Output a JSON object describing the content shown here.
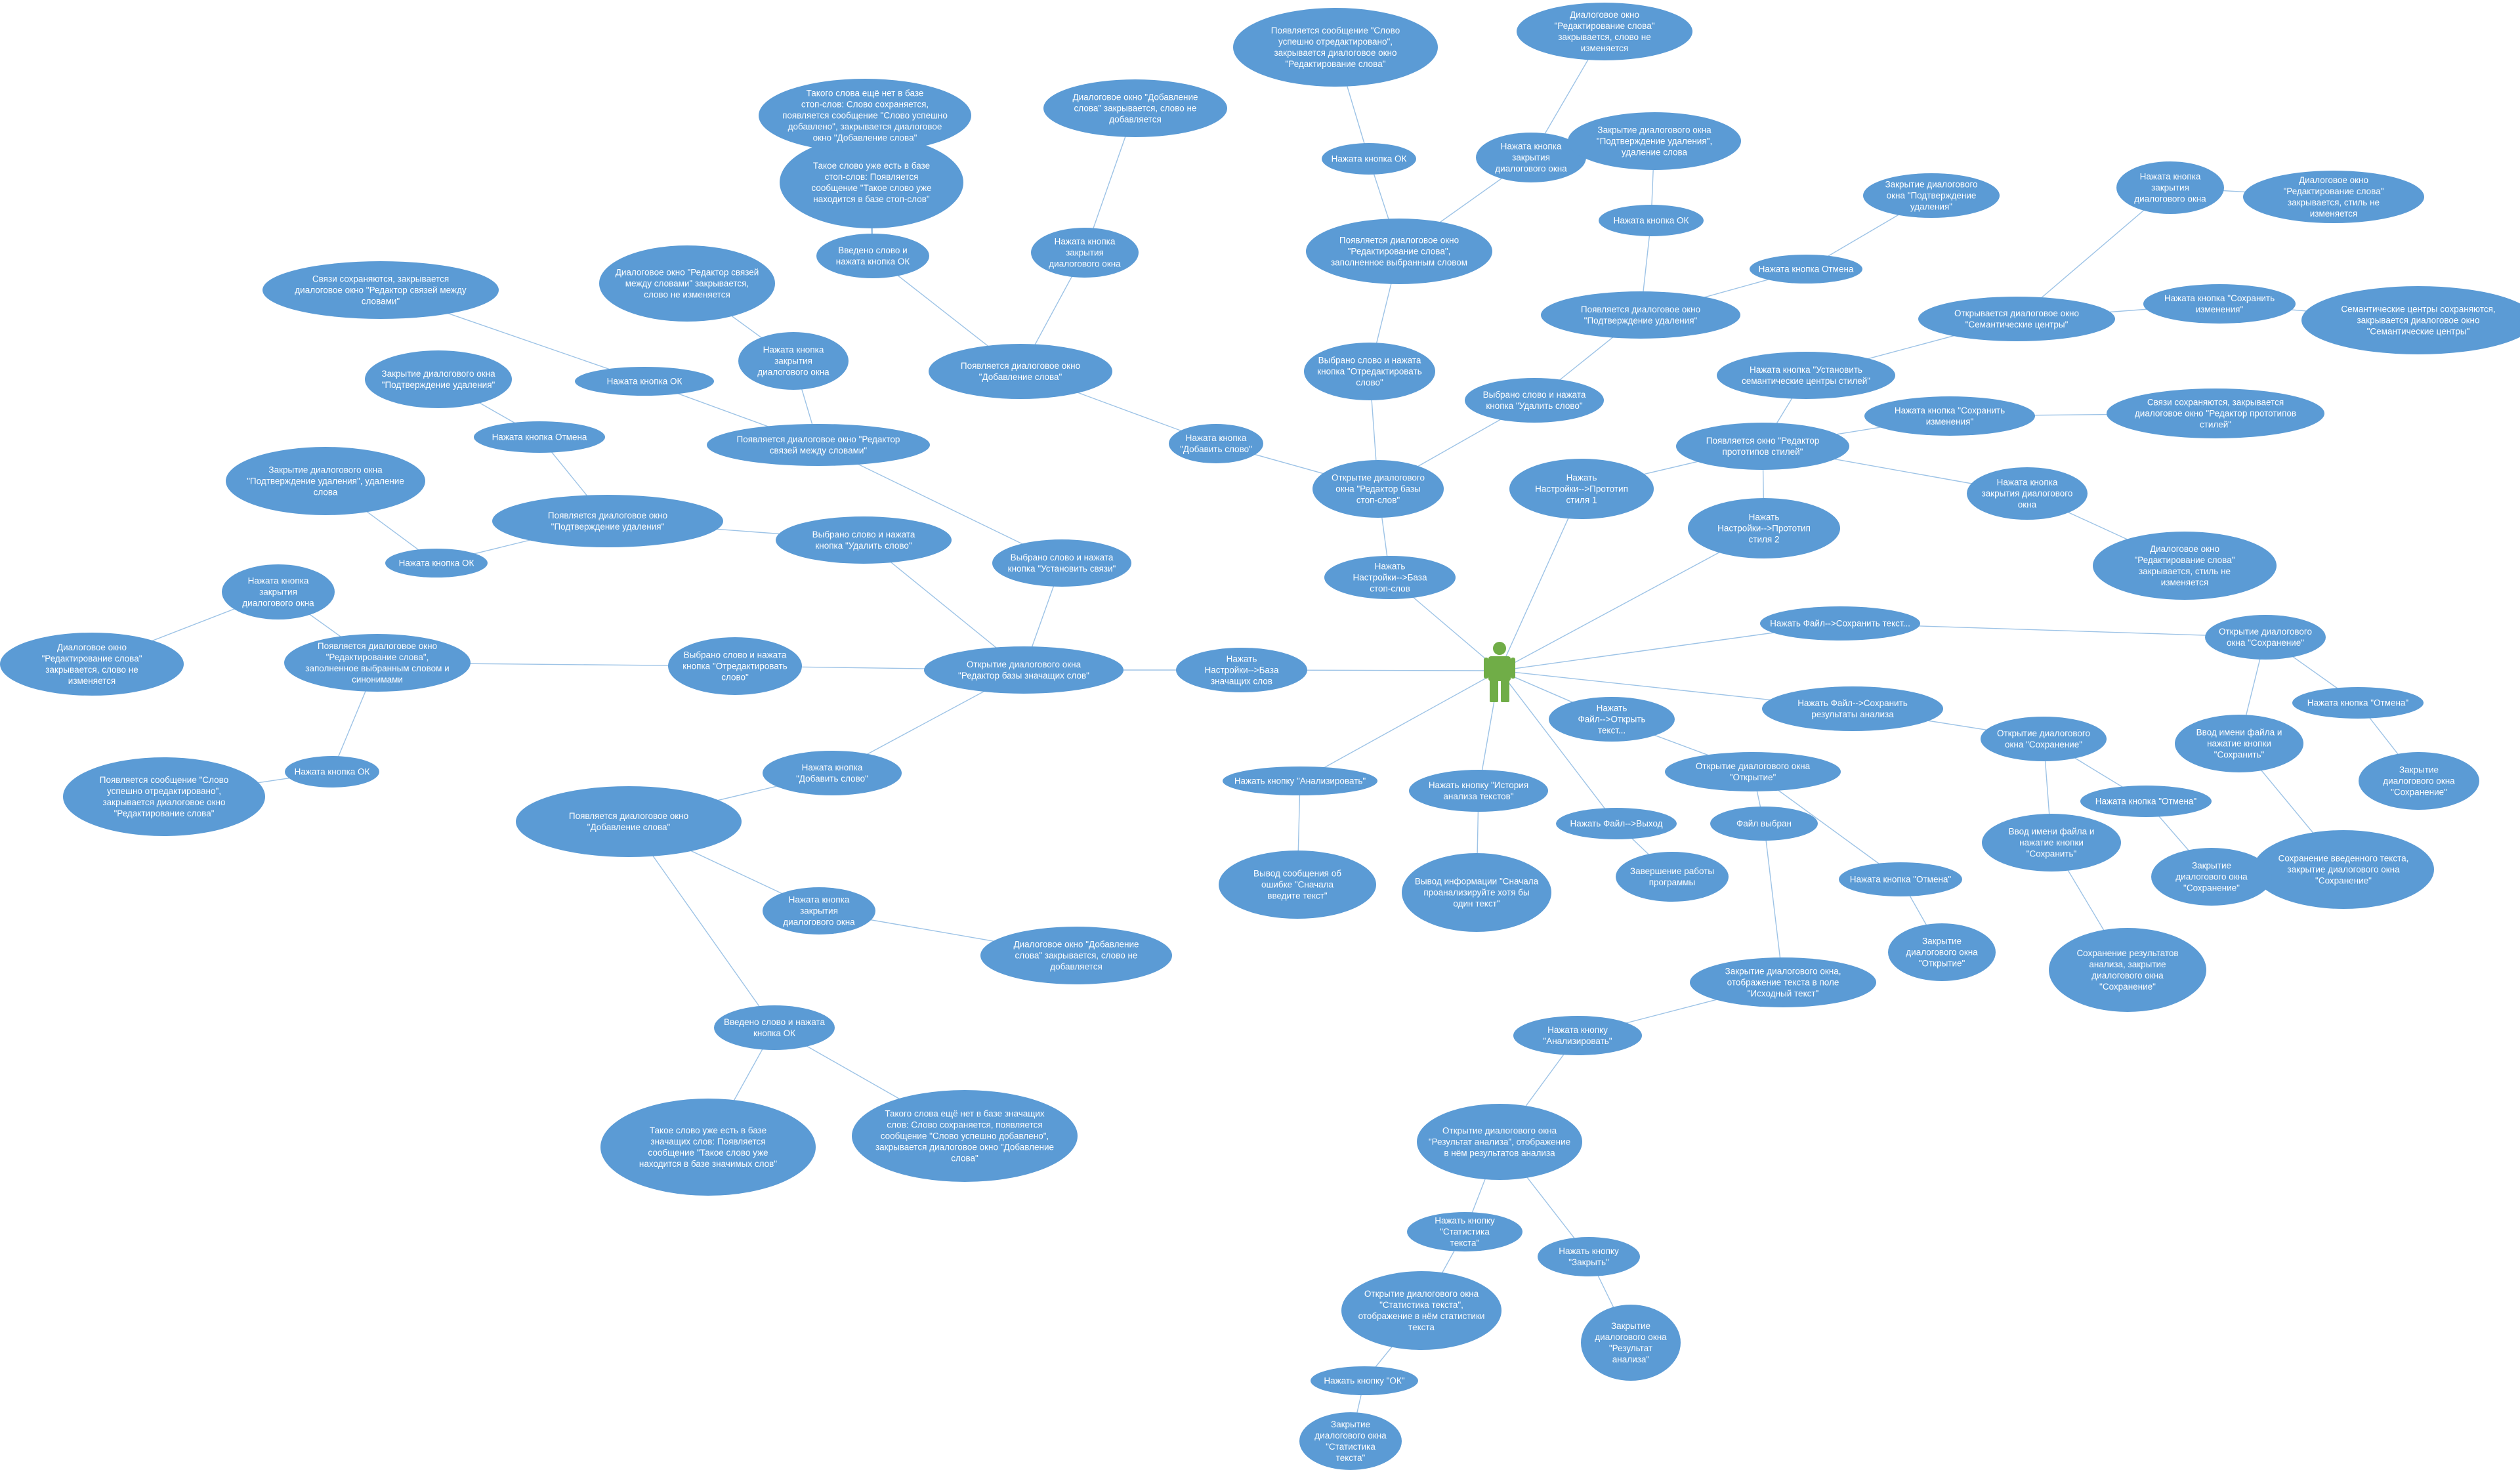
{
  "diagram": {
    "type": "use-case-mindmap",
    "colors": {
      "node": "#5b9bd5",
      "edge": "#9dc3e6",
      "text": "#ffffff",
      "actor": "#70ad47"
    },
    "actor": {
      "id": "actor",
      "icon": "user-actor-icon"
    },
    "nodes": [
      {
        "id": "set_stop",
        "text": "Нажать Настройки-->База стоп-слов"
      },
      {
        "id": "open_stop",
        "text": "Открытие диалогового окна \"Редактор базы стоп-слов\""
      },
      {
        "id": "stop_add",
        "text": "Нажата кнопка \"Добавить слово\""
      },
      {
        "id": "stop_dlg_add",
        "text": "Появляется диалоговое окно \"Добавление слова\""
      },
      {
        "id": "stop_close_add",
        "text": "Нажата кнопка закрытия диалогового окна"
      },
      {
        "id": "stop_add_closed",
        "text": "Диалоговое окно \"Добавление слова\" закрывается, слово не добавляется"
      },
      {
        "id": "stop_entered",
        "text": "Введено слово и нажата кнопка ОК"
      },
      {
        "id": "stop_exists",
        "text": "Такое слово уже есть в базе стоп-слов: Появляется сообщение \"Такое слово уже находится в базе стоп-слов\""
      },
      {
        "id": "stop_new",
        "text": "Такого слова ещё нет в базе стоп-слов: Слово сохраняется, появляется сообщение \"Слово успешно добавлено\", закрывается диалоговое окно \"Добавление слова\""
      },
      {
        "id": "stop_sel_edit",
        "text": "Выбрано слово и нажата кнопка \"Отредактировать слово\""
      },
      {
        "id": "stop_dlg_edit",
        "text": "Появляется диалоговое окно \"Редактирование слова\", заполненное выбранным словом"
      },
      {
        "id": "stop_edit_ok",
        "text": "Нажата кнопка ОК"
      },
      {
        "id": "stop_edit_msg",
        "text": "Появляется сообщение \"Слово успешно отредактировано\", закрывается диалоговое окно \"Редактирование слова\""
      },
      {
        "id": "stop_edit_close",
        "text": "Нажата кнопка закрытия диалогового окна"
      },
      {
        "id": "stop_edit_closed",
        "text": "Диалоговое окно \"Редактирование слова\" закрывается, слово не изменяется"
      },
      {
        "id": "stop_sel_del",
        "text": "Выбрано слово и нажата кнопка \"Удалить слово\""
      },
      {
        "id": "stop_dlg_conf",
        "text": "Появляется диалоговое окно \"Подтверждение удаления\""
      },
      {
        "id": "stop_conf_ok",
        "text": "Нажата кнопка ОК"
      },
      {
        "id": "stop_conf_ok_res",
        "text": "Закрытие диалогового окна \"Подтверждение удаления\", удаление слова"
      },
      {
        "id": "stop_conf_cancel",
        "text": "Нажата кнопка Отмена"
      },
      {
        "id": "stop_conf_cancel_res",
        "text": "Закрытие диалогового окна \"Подтверждение удаления\""
      },
      {
        "id": "set_proto1",
        "text": "Нажать Настройки-->Прототип стиля 1"
      },
      {
        "id": "set_proto2",
        "text": "Нажать Настройки-->Прототип стиля 2"
      },
      {
        "id": "proto_dlg",
        "text": "Появляется окно \"Редактор прототипов стилей\""
      },
      {
        "id": "proto_set_sem",
        "text": "Нажата кнопка \"Установить семантические центры стилей\""
      },
      {
        "id": "sem_dlg",
        "text": "Открывается диалоговое окно \"Семантические центры\""
      },
      {
        "id": "sem_close",
        "text": "Нажата кнопка закрытия диалогового окна"
      },
      {
        "id": "sem_closed",
        "text": "Диалоговое окно \"Редактирование слова\" закрывается, стиль не изменяется"
      },
      {
        "id": "sem_save",
        "text": "Нажата кнопка \"Сохранить изменения\""
      },
      {
        "id": "sem_saved",
        "text": "Семантические центры сохраняются, закрывается диалоговое окно \"Семантические центры\""
      },
      {
        "id": "proto_save",
        "text": "Нажата кнопка \"Сохранить изменения\""
      },
      {
        "id": "proto_saved",
        "text": "Связи сохраняются, закрывается диалоговое окно \"Редактор прототипов стилей\""
      },
      {
        "id": "proto_close",
        "text": "Нажата кнопка закрытия диалогового окна"
      },
      {
        "id": "proto_closed",
        "text": "Диалоговое окно \"Редактирование слова\" закрывается, стиль не изменяется"
      },
      {
        "id": "set_syn",
        "text": "Нажать Настройки-->База значащих слов"
      },
      {
        "id": "open_syn",
        "text": "Открытие диалогового окна \"Редактор базы значащих слов\""
      },
      {
        "id": "syn_add",
        "text": "Нажата кнопка \"Добавить слово\""
      },
      {
        "id": "syn_dlg_add",
        "text": "Появляется диалоговое окно \"Добавление слова\""
      },
      {
        "id": "syn_close_add",
        "text": "Нажата кнопка закрытия диалогового окна"
      },
      {
        "id": "syn_add_closed",
        "text": "Диалоговое окно \"Добавление слова\" закрывается, слово не добавляется"
      },
      {
        "id": "syn_entered",
        "text": "Введено слово и нажата кнопка ОК"
      },
      {
        "id": "syn_exists",
        "text": "Такое слово уже есть в базе значащих слов: Появляется сообщение \"Такое слово уже находится в базе значимых слов\""
      },
      {
        "id": "syn_new",
        "text": "Такого слова ещё нет в базе значащих слов: Слово сохраняется, появляется сообщение \"Слово успешно добавлено\", закрывается диалоговое окно \"Добавление слова\""
      },
      {
        "id": "syn_sel_edit",
        "text": "Выбрано слово и нажата кнопка \"Отредактировать слово\""
      },
      {
        "id": "syn_dlg_edit",
        "text": "Появляется диалоговое окно \"Редактирование слова\", заполненное выбранным словом и синонимами"
      },
      {
        "id": "syn_edit_close",
        "text": "Нажата кнопка закрытия диалогового окна"
      },
      {
        "id": "syn_edit_closed",
        "text": "Диалоговое окно \"Редактирование слова\" закрывается, слово не изменяется"
      },
      {
        "id": "syn_edit_ok",
        "text": "Нажата кнопка ОК"
      },
      {
        "id": "syn_edit_msg",
        "text": "Появляется сообщение \"Слово успешно отредактировано\", закрывается диалоговое окно \"Редактирование слова\""
      },
      {
        "id": "syn_sel_del",
        "text": "Выбрано слово и нажата кнопка \"Удалить слово\""
      },
      {
        "id": "syn_dlg_conf",
        "text": "Появляется диалоговое окно \"Подтверждение удаления\""
      },
      {
        "id": "syn_conf_ok",
        "text": "Нажата кнопка ОК"
      },
      {
        "id": "syn_conf_ok_res",
        "text": "Закрытие диалогового окна \"Подтверждение удаления\", удаление слова"
      },
      {
        "id": "syn_conf_cancel",
        "text": "Нажата кнопка Отмена"
      },
      {
        "id": "syn_conf_cancel_res",
        "text": "Закрытие диалогового окна \"Подтверждение удаления\""
      },
      {
        "id": "syn_sel_link",
        "text": "Выбрано слово и нажата кнопка \"Установить связи\""
      },
      {
        "id": "syn_link_dlg",
        "text": "Появляется диалоговое окно \"Редактор связей между словами\""
      },
      {
        "id": "syn_link_ok",
        "text": "Нажата кнопка ОК"
      },
      {
        "id": "syn_link_saved",
        "text": "Связи сохраняются, закрывается диалоговое окно \"Редактор связей между словами\""
      },
      {
        "id": "syn_link_close",
        "text": "Нажата кнопка закрытия диалогового окна"
      },
      {
        "id": "syn_link_closed",
        "text": "Диалоговое окно \"Редактор связей между словами\" закрывается, слово не изменяется"
      },
      {
        "id": "btn_analyze",
        "text": "Нажать кнопку \"Анализировать\""
      },
      {
        "id": "err_notext",
        "text": "Вывод сообщения об ошибке \"Сначала введите текст\""
      },
      {
        "id": "btn_history",
        "text": "Нажать кнопку \"История анализа текстов\""
      },
      {
        "id": "info_history",
        "text": "Вывод информации \"Сначала проанализируйте хотя бы один текст\""
      },
      {
        "id": "file_exit",
        "text": "Нажать Файл-->Выход"
      },
      {
        "id": "exit_res",
        "text": "Завершение работы программы"
      },
      {
        "id": "file_open",
        "text": "Нажать Файл-->Открыть текст..."
      },
      {
        "id": "open_dlg",
        "text": "Открытие диалогового окна \"Открытие\""
      },
      {
        "id": "open_cancel",
        "text": "Нажата кнопка \"Отмена\""
      },
      {
        "id": "open_cancel_res",
        "text": "Закрытие диалогового окна \"Открытие\""
      },
      {
        "id": "file_chosen",
        "text": "Файл выбран"
      },
      {
        "id": "open_done",
        "text": "Закрытие диалогового окна, отображение текста в поле \"Исходный текст\""
      },
      {
        "id": "btn_analyze2",
        "text": "Нажата кнопку \"Анализировать\""
      },
      {
        "id": "res_dlg",
        "text": "Открытие диалогового окна \"Результат анализа\", отображение в нём результатов анализа"
      },
      {
        "id": "btn_stats",
        "text": "Нажать кнопку \"Статистика текста\""
      },
      {
        "id": "stats_dlg",
        "text": "Открытие диалогового окна \"Статистика текста\", отображение в нём статистики текста"
      },
      {
        "id": "stats_ok",
        "text": "Нажать кнопку \"ОК\""
      },
      {
        "id": "stats_closed",
        "text": "Закрытие диалогового окна \"Статистика текста\""
      },
      {
        "id": "btn_close",
        "text": "Нажать кнопку \"Закрыть\""
      },
      {
        "id": "res_closed",
        "text": "Закрытие диалогового окна \"Результат анализа\""
      },
      {
        "id": "file_save_text",
        "text": "Нажать Файл-->Сохранить текст..."
      },
      {
        "id": "save_dlg1",
        "text": "Открытие диалогового окна \"Сохранение\""
      },
      {
        "id": "save1_cancel",
        "text": "Нажата кнопка \"Отмена\""
      },
      {
        "id": "save1_cancel_res",
        "text": "Закрытие диалогового окна \"Сохранение\""
      },
      {
        "id": "save1_name",
        "text": "Ввод имени файла и нажатие кнопки \"Сохранить\""
      },
      {
        "id": "save1_done",
        "text": "Сохранение введенного текста, закрытие диалогового окна \"Сохранение\""
      },
      {
        "id": "file_save_res",
        "text": "Нажать Файл-->Сохранить результаты анализа"
      },
      {
        "id": "save_dlg2",
        "text": "Открытие диалогового окна \"Сохранение\""
      },
      {
        "id": "save2_cancel",
        "text": "Нажата кнопка \"Отмена\""
      },
      {
        "id": "save2_cancel_res",
        "text": "Закрытие диалогового окна \"Сохранение\""
      },
      {
        "id": "save2_name",
        "text": "Ввод имени файла и нажатие кнопки \"Сохранить\""
      },
      {
        "id": "save2_done",
        "text": "Сохранение результатов анализа, закрытие диалогового окна \"Сохранение\""
      }
    ],
    "edges": [
      [
        "actor",
        "set_stop"
      ],
      [
        "set_stop",
        "open_stop"
      ],
      [
        "open_stop",
        "stop_add"
      ],
      [
        "stop_add",
        "stop_dlg_add"
      ],
      [
        "stop_dlg_add",
        "stop_close_add"
      ],
      [
        "stop_close_add",
        "stop_add_closed"
      ],
      [
        "stop_dlg_add",
        "stop_entered"
      ],
      [
        "stop_entered",
        "stop_exists"
      ],
      [
        "stop_entered",
        "stop_new"
      ],
      [
        "open_stop",
        "stop_sel_edit"
      ],
      [
        "stop_sel_edit",
        "stop_dlg_edit"
      ],
      [
        "stop_dlg_edit",
        "stop_edit_ok"
      ],
      [
        "stop_edit_ok",
        "stop_edit_msg"
      ],
      [
        "stop_dlg_edit",
        "stop_edit_close"
      ],
      [
        "stop_edit_close",
        "stop_edit_closed"
      ],
      [
        "open_stop",
        "stop_sel_del"
      ],
      [
        "stop_sel_del",
        "stop_dlg_conf"
      ],
      [
        "stop_dlg_conf",
        "stop_conf_ok"
      ],
      [
        "stop_conf_ok",
        "stop_conf_ok_res"
      ],
      [
        "stop_dlg_conf",
        "stop_conf_cancel"
      ],
      [
        "stop_conf_cancel",
        "stop_conf_cancel_res"
      ],
      [
        "actor",
        "set_proto1"
      ],
      [
        "actor",
        "set_proto2"
      ],
      [
        "set_proto1",
        "proto_dlg"
      ],
      [
        "set_proto2",
        "proto_dlg"
      ],
      [
        "proto_dlg",
        "proto_set_sem"
      ],
      [
        "proto_set_sem",
        "sem_dlg"
      ],
      [
        "sem_dlg",
        "sem_close"
      ],
      [
        "sem_close",
        "sem_closed"
      ],
      [
        "sem_dlg",
        "sem_save"
      ],
      [
        "sem_save",
        "sem_saved"
      ],
      [
        "proto_dlg",
        "proto_save"
      ],
      [
        "proto_save",
        "proto_saved"
      ],
      [
        "proto_dlg",
        "proto_close"
      ],
      [
        "proto_close",
        "proto_closed"
      ],
      [
        "actor",
        "set_syn"
      ],
      [
        "set_syn",
        "open_syn"
      ],
      [
        "open_syn",
        "syn_add"
      ],
      [
        "syn_add",
        "syn_dlg_add"
      ],
      [
        "syn_dlg_add",
        "syn_close_add"
      ],
      [
        "syn_close_add",
        "syn_add_closed"
      ],
      [
        "syn_dlg_add",
        "syn_entered"
      ],
      [
        "syn_entered",
        "syn_exists"
      ],
      [
        "syn_entered",
        "syn_new"
      ],
      [
        "open_syn",
        "syn_sel_edit"
      ],
      [
        "syn_sel_edit",
        "syn_dlg_edit"
      ],
      [
        "syn_dlg_edit",
        "syn_edit_close"
      ],
      [
        "syn_edit_close",
        "syn_edit_closed"
      ],
      [
        "syn_dlg_edit",
        "syn_edit_ok"
      ],
      [
        "syn_edit_ok",
        "syn_edit_msg"
      ],
      [
        "open_syn",
        "syn_sel_del"
      ],
      [
        "syn_sel_del",
        "syn_dlg_conf"
      ],
      [
        "syn_dlg_conf",
        "syn_conf_ok"
      ],
      [
        "syn_conf_ok",
        "syn_conf_ok_res"
      ],
      [
        "syn_dlg_conf",
        "syn_conf_cancel"
      ],
      [
        "syn_conf_cancel",
        "syn_conf_cancel_res"
      ],
      [
        "open_syn",
        "syn_sel_link"
      ],
      [
        "syn_sel_link",
        "syn_link_dlg"
      ],
      [
        "syn_link_dlg",
        "syn_link_ok"
      ],
      [
        "syn_link_ok",
        "syn_link_saved"
      ],
      [
        "syn_link_dlg",
        "syn_link_close"
      ],
      [
        "syn_link_close",
        "syn_link_closed"
      ],
      [
        "actor",
        "btn_analyze"
      ],
      [
        "btn_analyze",
        "err_notext"
      ],
      [
        "actor",
        "btn_history"
      ],
      [
        "btn_history",
        "info_history"
      ],
      [
        "actor",
        "file_exit"
      ],
      [
        "file_exit",
        "exit_res"
      ],
      [
        "actor",
        "file_open"
      ],
      [
        "file_open",
        "open_dlg"
      ],
      [
        "open_dlg",
        "open_cancel"
      ],
      [
        "open_cancel",
        "open_cancel_res"
      ],
      [
        "open_dlg",
        "file_chosen"
      ],
      [
        "file_chosen",
        "open_done"
      ],
      [
        "open_done",
        "btn_analyze2"
      ],
      [
        "btn_analyze2",
        "res_dlg"
      ],
      [
        "res_dlg",
        "btn_stats"
      ],
      [
        "btn_stats",
        "stats_dlg"
      ],
      [
        "stats_dlg",
        "stats_ok"
      ],
      [
        "stats_ok",
        "stats_closed"
      ],
      [
        "res_dlg",
        "btn_close"
      ],
      [
        "btn_close",
        "res_closed"
      ],
      [
        "actor",
        "file_save_text"
      ],
      [
        "file_save_text",
        "save_dlg1"
      ],
      [
        "save_dlg1",
        "save1_cancel"
      ],
      [
        "save1_cancel",
        "save1_cancel_res"
      ],
      [
        "save_dlg1",
        "save1_name"
      ],
      [
        "save1_name",
        "save1_done"
      ],
      [
        "actor",
        "file_save_res"
      ],
      [
        "file_save_res",
        "save_dlg2"
      ],
      [
        "save_dlg2",
        "save2_cancel"
      ],
      [
        "save2_cancel",
        "save2_cancel_res"
      ],
      [
        "save_dlg2",
        "save2_name"
      ],
      [
        "save2_name",
        "save2_done"
      ]
    ]
  }
}
